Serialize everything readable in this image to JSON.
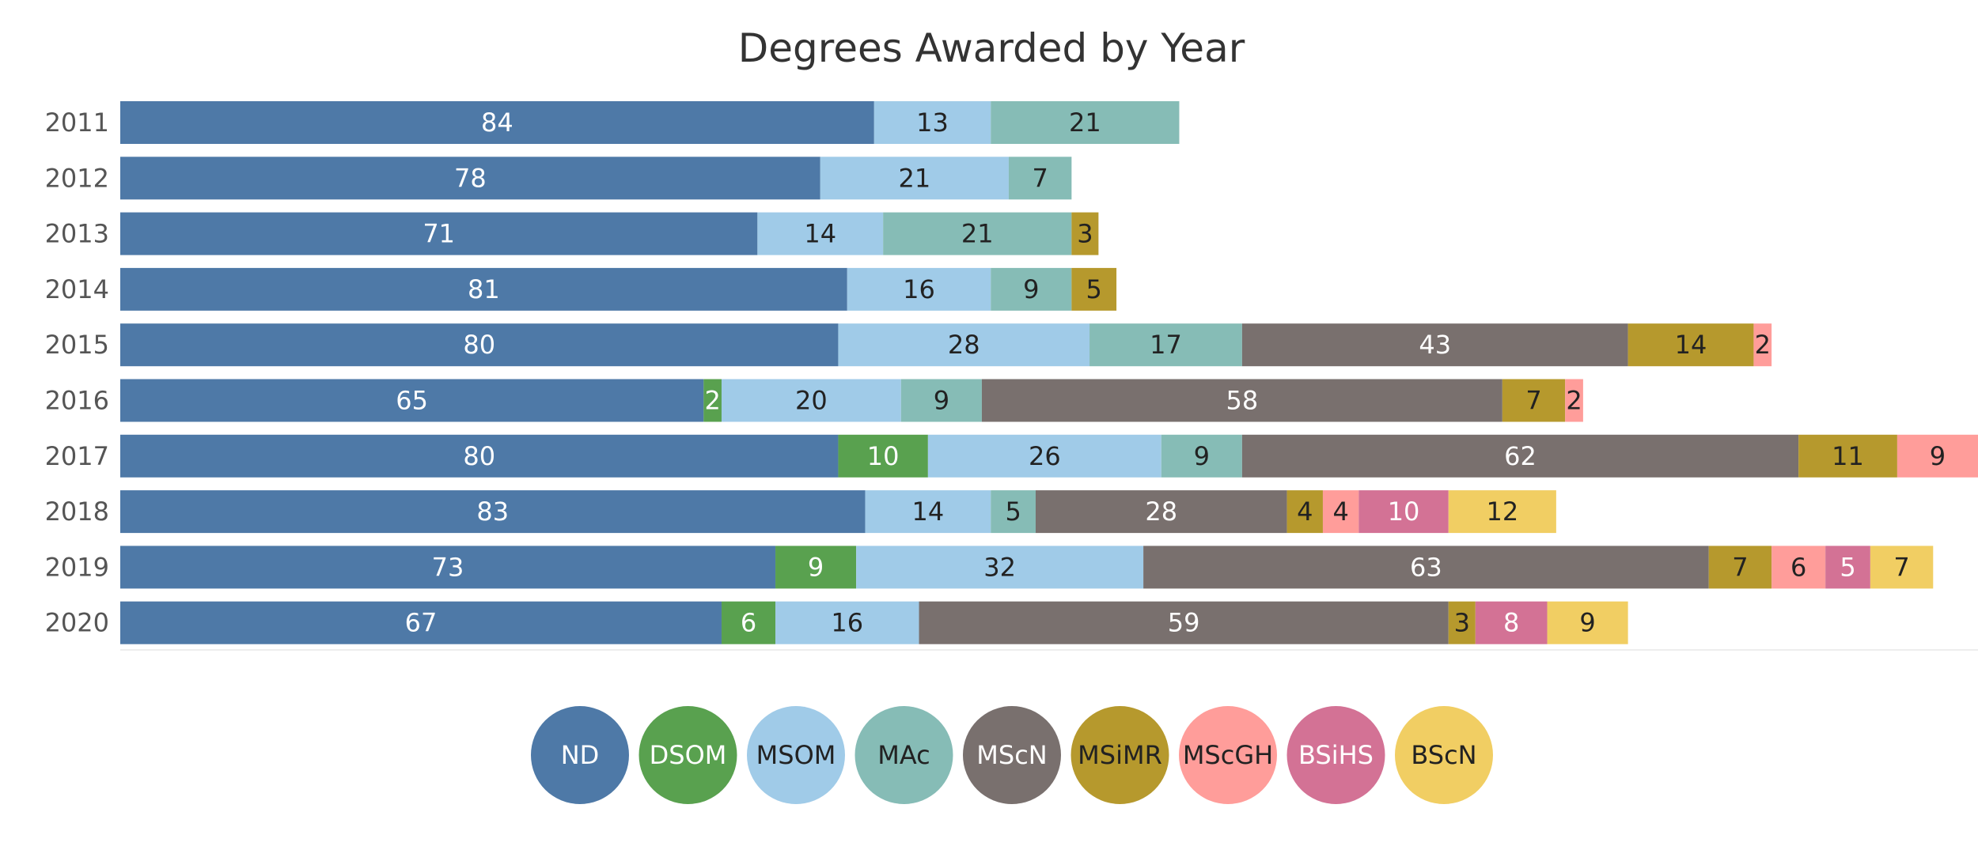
{
  "chart_data": {
    "type": "bar",
    "orientation": "horizontal",
    "stacked": true,
    "title": "Degrees Awarded by Year",
    "categories": [
      "2011",
      "2012",
      "2013",
      "2014",
      "2015",
      "2016",
      "2017",
      "2018",
      "2019",
      "2020"
    ],
    "series": [
      {
        "name": "ND",
        "color": "#4e79a7",
        "label_color": "#ffffff",
        "values": [
          84,
          78,
          71,
          81,
          80,
          65,
          80,
          83,
          73,
          67
        ]
      },
      {
        "name": "DSOM",
        "color": "#59a14f",
        "label_color": "#ffffff",
        "values": [
          0,
          0,
          0,
          0,
          0,
          2,
          10,
          0,
          9,
          6
        ]
      },
      {
        "name": "MSOM",
        "color": "#a0cbe8",
        "label_color": "#222222",
        "values": [
          13,
          21,
          14,
          16,
          28,
          20,
          26,
          14,
          32,
          16
        ]
      },
      {
        "name": "MAc",
        "color": "#86bcb6",
        "label_color": "#222222",
        "values": [
          21,
          7,
          21,
          9,
          17,
          9,
          9,
          5,
          0,
          0
        ]
      },
      {
        "name": "MScN",
        "color": "#79706e",
        "label_color": "#ffffff",
        "values": [
          0,
          0,
          0,
          0,
          43,
          58,
          62,
          28,
          63,
          59
        ]
      },
      {
        "name": "MSiMR",
        "color": "#b6992d",
        "label_color": "#222222",
        "values": [
          0,
          0,
          3,
          5,
          14,
          7,
          11,
          4,
          7,
          3
        ]
      },
      {
        "name": "MScGH",
        "color": "#ff9d9a",
        "label_color": "#222222",
        "values": [
          0,
          0,
          0,
          0,
          2,
          2,
          9,
          4,
          6,
          0
        ]
      },
      {
        "name": "BSiHS",
        "color": "#d37295",
        "label_color": "#ffffff",
        "values": [
          0,
          0,
          0,
          0,
          0,
          0,
          0,
          10,
          5,
          8
        ]
      },
      {
        "name": "BScN",
        "color": "#f1ce63",
        "label_color": "#222222",
        "values": [
          0,
          0,
          0,
          0,
          0,
          0,
          0,
          12,
          7,
          9
        ]
      }
    ],
    "xlim": [
      0,
      207
    ],
    "grid": false,
    "legend_position": "bottom-center"
  }
}
